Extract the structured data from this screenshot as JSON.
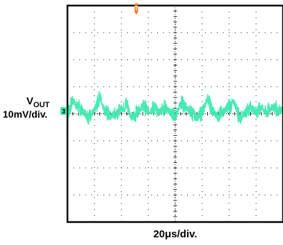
{
  "chart_data": {
    "type": "line",
    "title": "",
    "channel_label": "V",
    "channel_label_sub": "OUT",
    "y_scale": "10mV/div.",
    "x_scale": "20μs/div.",
    "trigger_marker": "T",
    "channel_marker": "3",
    "grid": true,
    "x_divisions": 8,
    "y_divisions": 8,
    "x_unit": "μs",
    "y_unit": "mV",
    "xlim": [
      0,
      160
    ],
    "ylim": [
      -40,
      40
    ],
    "series": [
      {
        "color": "#3ee8b0",
        "x": [
          0,
          8,
          16,
          24,
          32,
          40,
          48,
          56,
          64,
          72,
          80,
          88,
          96,
          104,
          112,
          120,
          128,
          136,
          144,
          152,
          160
        ],
        "values": [
          0.5,
          2.5,
          -1,
          3,
          -1,
          2,
          -1.5,
          3,
          -1,
          2.5,
          -1,
          2.5,
          -1.5,
          2.5,
          -1,
          3,
          -1.5,
          2.5,
          -1,
          2.5,
          1
        ]
      }
    ],
    "peaks_x": [
      4,
      24,
      44,
      64,
      84,
      104,
      124,
      144
    ],
    "noise_amplitude": 3
  },
  "colors": {
    "trace": "#3ee8b0",
    "grid_dot": "#333333",
    "frame": "#000000",
    "trigger": "#f07a2a",
    "channel_marker_bg": "#3ee8b0"
  }
}
